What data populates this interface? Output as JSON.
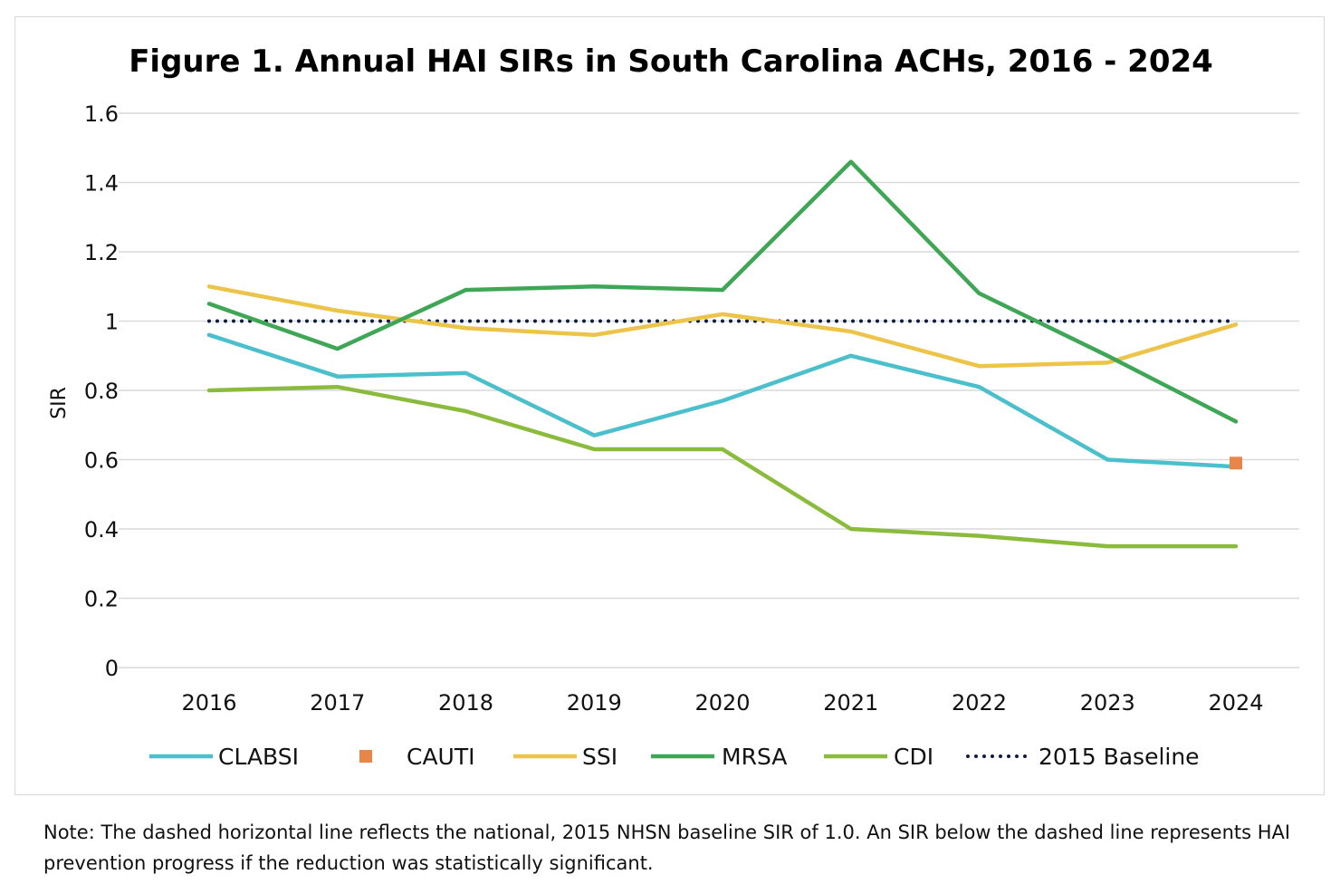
{
  "chart_data": {
    "type": "line",
    "title": "Figure 1. Annual HAI SIRs in South Carolina ACHs, 2016 - 2024",
    "xlabel": "",
    "ylabel": "SIR",
    "ylim": [
      0,
      1.6
    ],
    "yticks": [
      "0",
      "0.2",
      "0.4",
      "0.6",
      "0.8",
      "1",
      "1.2",
      "1.4",
      "1.6"
    ],
    "ytick_values": [
      0,
      0.2,
      0.4,
      0.6,
      0.8,
      1,
      1.2,
      1.4,
      1.6
    ],
    "categories": [
      "2016",
      "2017",
      "2018",
      "2019",
      "2020",
      "2021",
      "2022",
      "2023",
      "2024"
    ],
    "grid": "horizontal",
    "legend_position": "bottom",
    "series": [
      {
        "name": "CLABSI",
        "color": "#4bbfcc",
        "style": "line",
        "values": [
          0.96,
          0.84,
          0.85,
          0.67,
          0.77,
          0.9,
          0.81,
          0.6,
          0.58
        ]
      },
      {
        "name": "CAUTI",
        "color": "#e8864a",
        "style": "marker",
        "values": [
          null,
          null,
          null,
          null,
          null,
          null,
          null,
          null,
          0.59
        ]
      },
      {
        "name": "SSI",
        "color": "#ecc44a",
        "style": "line",
        "values": [
          1.1,
          1.03,
          0.98,
          0.96,
          1.02,
          0.97,
          0.87,
          0.88,
          0.99
        ]
      },
      {
        "name": "MRSA",
        "color": "#3fa656",
        "style": "line",
        "values": [
          1.05,
          0.92,
          1.09,
          1.1,
          1.09,
          1.46,
          1.08,
          0.9,
          0.71
        ]
      },
      {
        "name": "CDI",
        "color": "#8bbb3c",
        "style": "line",
        "values": [
          0.8,
          0.81,
          0.74,
          0.63,
          0.63,
          0.4,
          0.38,
          0.35,
          0.35
        ]
      },
      {
        "name": "2015 Baseline",
        "color": "#0d1b3e",
        "style": "dotted",
        "values": [
          1,
          1,
          1,
          1,
          1,
          1,
          1,
          1,
          1
        ]
      }
    ]
  },
  "note": "Note: The dashed horizontal line reflects the national, 2015 NHSN baseline SIR of 1.0. An SIR below the dashed line represents HAI prevention progress if the reduction was statistically significant."
}
